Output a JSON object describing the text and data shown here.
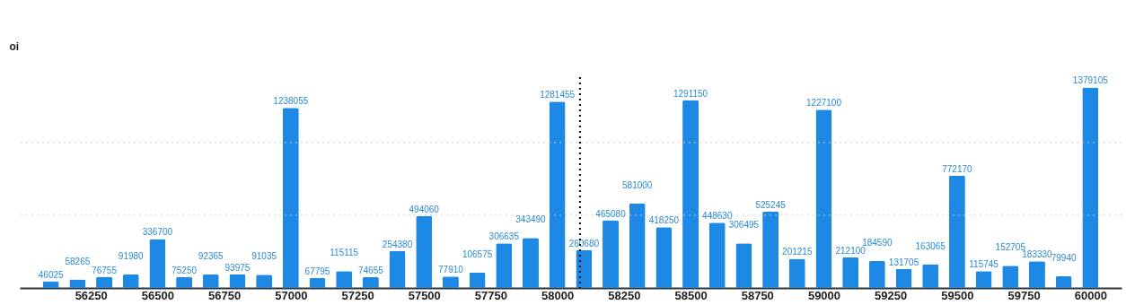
{
  "chart_data": {
    "type": "bar",
    "ylabel": "oi",
    "x": [
      56100,
      56200,
      56300,
      56400,
      56500,
      56600,
      56700,
      56800,
      56900,
      57000,
      57100,
      57200,
      57300,
      57400,
      57500,
      57600,
      57700,
      57800,
      57900,
      58000,
      58100,
      58200,
      58300,
      58400,
      58500,
      58600,
      58700,
      58800,
      58900,
      59000,
      59100,
      59200,
      59300,
      59400,
      59500,
      59600,
      59700,
      59800,
      59900,
      60000
    ],
    "values": [
      46025,
      58265,
      76755,
      91980,
      336700,
      75250,
      92365,
      93975,
      91035,
      1238055,
      67795,
      115115,
      74655,
      254380,
      494060,
      77910,
      106575,
      306635,
      343490,
      1281455,
      260680,
      465080,
      581000,
      418250,
      1291150,
      448630,
      306495,
      525245,
      201215,
      1227100,
      212100,
      184590,
      131705,
      163065,
      772170,
      115745,
      152705,
      183330,
      79940,
      1379105
    ],
    "color": "#1e88e5",
    "data_labels": true,
    "xlim": [
      56000,
      60100
    ],
    "xticks": [
      56250,
      56500,
      56750,
      57000,
      57250,
      57500,
      57750,
      58000,
      58250,
      58500,
      58750,
      59000,
      59250,
      59500,
      59750,
      60000
    ],
    "ylim": [
      0,
      1450000
    ],
    "tick_labels": "x",
    "ref_lines": [
      {
        "axis": "x",
        "value": 58085,
        "label": null,
        "line_style": "dotted",
        "color": "#000000"
      },
      {
        "axis": "y",
        "value": 500000,
        "label": null,
        "line_style": "dotted",
        "color": "#cccccc"
      },
      {
        "axis": "y",
        "value": 1000000,
        "label": null,
        "line_style": "dotted",
        "color": "#cccccc"
      }
    ]
  }
}
